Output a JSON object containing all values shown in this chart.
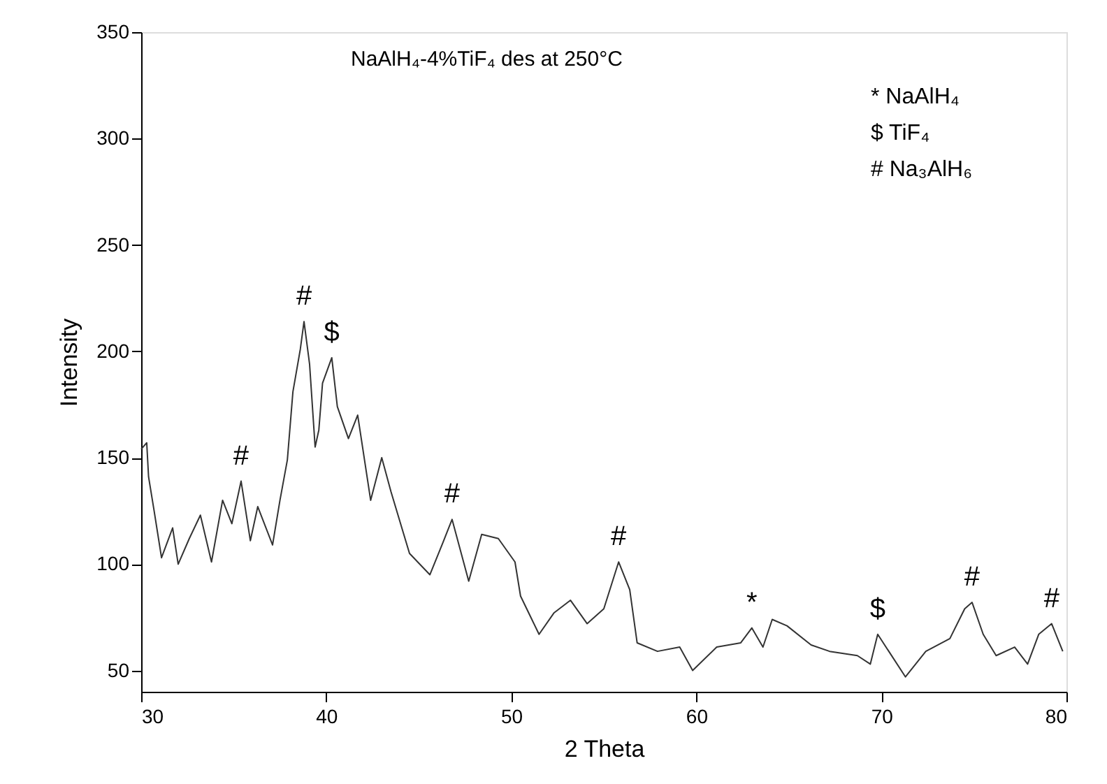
{
  "chart_data": {
    "type": "line",
    "title": "NaAlH₄-4%TiF₄ des at 250°C",
    "xlabel": "2 Theta",
    "ylabel": "Intensity",
    "x": [
      30.0,
      30.3,
      30.4,
      30.7,
      31.1,
      31.7,
      32.0,
      32.6,
      33.2,
      33.8,
      34.4,
      34.9,
      35.4,
      35.9,
      36.3,
      37.1,
      37.5,
      37.9,
      38.2,
      38.6,
      38.8,
      39.1,
      39.4,
      39.6,
      39.8,
      40.3,
      40.6,
      41.2,
      41.7,
      42.4,
      43.0,
      43.5,
      44.5,
      45.6,
      46.3,
      46.8,
      47.7,
      48.4,
      49.3,
      50.2,
      50.5,
      51.5,
      52.3,
      53.2,
      54.1,
      55.0,
      55.8,
      56.4,
      56.8,
      57.9,
      59.1,
      59.8,
      61.1,
      62.4,
      63.0,
      63.6,
      64.1,
      64.9,
      66.2,
      67.2,
      68.7,
      69.4,
      69.8,
      70.4,
      71.3,
      72.4,
      73.7,
      74.5,
      74.9,
      75.5,
      76.2,
      77.2,
      77.9,
      78.5,
      79.2,
      79.8
    ],
    "series": [
      {
        "color": "#333333",
        "values": [
          154,
          157,
          141,
          125,
          103,
          117,
          100,
          112,
          123,
          101,
          130,
          119,
          139,
          111,
          127,
          109,
          130,
          149,
          181,
          201,
          214,
          194,
          155,
          163,
          185,
          197,
          174,
          159,
          170,
          130,
          150,
          134,
          105,
          95,
          110,
          121,
          92,
          114,
          112,
          101,
          85,
          67,
          77,
          83,
          72,
          79,
          101,
          88,
          63,
          59,
          61,
          50,
          61,
          63,
          70,
          61,
          74,
          71,
          62,
          59,
          57,
          53,
          67,
          59,
          47,
          59,
          65,
          79,
          82,
          67,
          57,
          61,
          53,
          67,
          72,
          59
        ]
      }
    ],
    "xlim": [
      30,
      80
    ],
    "xticks": [
      30,
      40,
      50,
      60,
      70,
      80
    ],
    "ylim": [
      40,
      350
    ],
    "yticks": [
      50,
      100,
      150,
      200,
      250,
      300,
      350
    ],
    "grid": false,
    "marker": "none",
    "line_style": "solid",
    "annotations": [
      {
        "text": "#",
        "x": 35.4,
        "y": 139
      },
      {
        "text": "#",
        "x": 38.8,
        "y": 214
      },
      {
        "text": "$",
        "x": 40.3,
        "y": 197
      },
      {
        "text": "#",
        "x": 46.8,
        "y": 121
      },
      {
        "text": "#",
        "x": 55.8,
        "y": 101
      },
      {
        "text": "*",
        "x": 63.0,
        "y": 70
      },
      {
        "text": "$",
        "x": 69.8,
        "y": 67
      },
      {
        "text": "#",
        "x": 74.9,
        "y": 82
      },
      {
        "text": "#",
        "x": 79.2,
        "y": 72
      },
      "*   NaAlH₄",
      "$   TiF₄",
      "#   Na₃AlH₆"
    ]
  }
}
